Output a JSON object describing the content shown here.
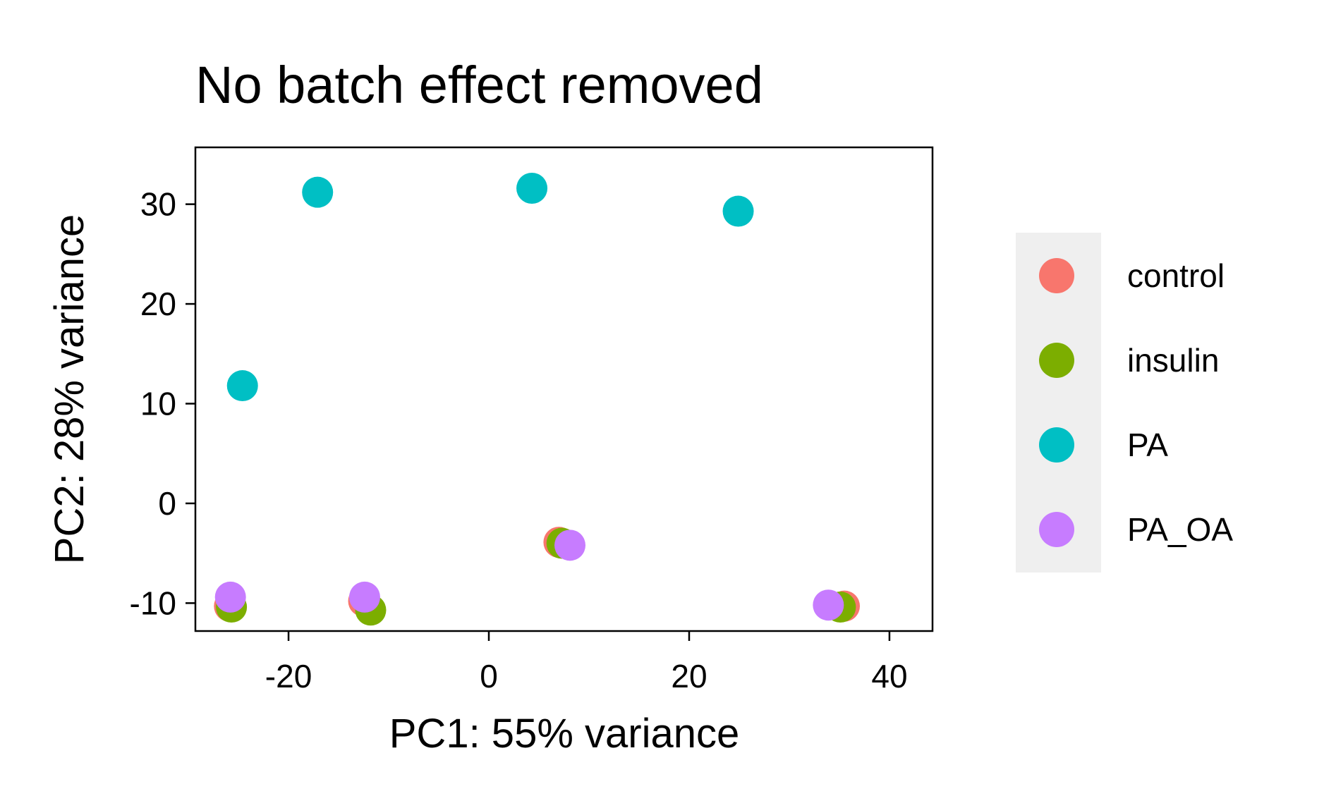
{
  "chart_data": {
    "type": "scatter",
    "title": "No batch effect removed",
    "xlabel": "PC1: 55% variance",
    "ylabel": "PC2: 28% variance",
    "xlim": [
      -29.3,
      44.3
    ],
    "ylim": [
      -12.8,
      35.7
    ],
    "xticks": [
      {
        "value": -20,
        "label": "-20"
      },
      {
        "value": 0,
        "label": "0"
      },
      {
        "value": 20,
        "label": "20"
      },
      {
        "value": 40,
        "label": "40"
      }
    ],
    "yticks": [
      {
        "value": -10,
        "label": "-10"
      },
      {
        "value": 0,
        "label": "0"
      },
      {
        "value": 10,
        "label": "10"
      },
      {
        "value": 20,
        "label": "20"
      },
      {
        "value": 30,
        "label": "30"
      }
    ],
    "grid": false,
    "legend_position": "right",
    "series": [
      {
        "name": "control",
        "color": "#F8766D",
        "points": [
          [
            -25.9,
            -10.3
          ],
          [
            -12.5,
            -9.8
          ],
          [
            7.0,
            -3.9
          ],
          [
            35.5,
            -10.3
          ]
        ]
      },
      {
        "name": "insulin",
        "color": "#7CAE00",
        "points": [
          [
            -25.7,
            -10.4
          ],
          [
            -11.8,
            -10.7
          ],
          [
            7.3,
            -4.0
          ],
          [
            35.1,
            -10.4
          ]
        ]
      },
      {
        "name": "PA",
        "color": "#00BFC4",
        "points": [
          [
            -24.6,
            11.8
          ],
          [
            -17.1,
            31.2
          ],
          [
            4.3,
            31.6
          ],
          [
            24.9,
            29.3
          ]
        ]
      },
      {
        "name": "PA_OA",
        "color": "#C77CFF",
        "points": [
          [
            -25.8,
            -9.4
          ],
          [
            -12.4,
            -9.4
          ],
          [
            8.1,
            -4.2
          ],
          [
            33.9,
            -10.2
          ]
        ]
      }
    ]
  }
}
